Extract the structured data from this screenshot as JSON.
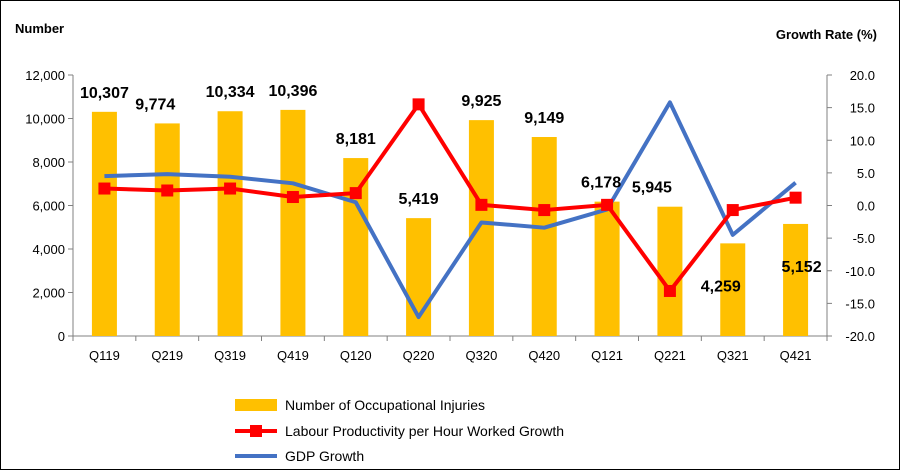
{
  "chart_data": {
    "type": "bar",
    "categories": [
      "Q119",
      "Q219",
      "Q319",
      "Q419",
      "Q120",
      "Q220",
      "Q320",
      "Q420",
      "Q121",
      "Q221",
      "Q321",
      "Q421"
    ],
    "left_axis": {
      "title": "Number",
      "ylim": [
        0,
        12000
      ],
      "ticks": [
        "0",
        "2,000",
        "4,000",
        "6,000",
        "8,000",
        "10,000",
        "12,000"
      ],
      "tick_values": [
        0,
        2000,
        4000,
        6000,
        8000,
        10000,
        12000
      ]
    },
    "right_axis": {
      "title": "Growth Rate (%)",
      "ylim": [
        -20,
        20
      ],
      "ticks": [
        "-20.0",
        "-15.0",
        "-10.0",
        "-5.0",
        "0.0",
        "5.0",
        "10.0",
        "15.0",
        "20.0"
      ],
      "tick_values": [
        -20,
        -15,
        -10,
        -5,
        0,
        5,
        10,
        15,
        20
      ]
    },
    "series": [
      {
        "name": "Number of Occupational Injuries",
        "type": "bar",
        "axis": "left",
        "color": "#FFC000",
        "values": [
          10307,
          9774,
          10334,
          10396,
          8181,
          5419,
          9925,
          9149,
          6178,
          5945,
          4259,
          5152
        ],
        "labels": [
          "10,307",
          "9,774",
          "10,334",
          "10,396",
          "8,181",
          "5,419",
          "9,925",
          "9,149",
          "6,178",
          "5,945",
          "4,259",
          "5,152"
        ]
      },
      {
        "name": "Labour Productivity per Hour Worked Growth",
        "type": "line",
        "axis": "right",
        "color": "#FF0000",
        "marker": "square",
        "values": [
          2.6,
          2.3,
          2.6,
          1.3,
          1.9,
          15.5,
          0.1,
          -0.7,
          0.1,
          -13.1,
          -0.7,
          1.2
        ]
      },
      {
        "name": "GDP Growth",
        "type": "line",
        "axis": "right",
        "color": "#4472C4",
        "values": [
          4.5,
          4.8,
          4.4,
          3.4,
          0.5,
          -17.1,
          -2.6,
          -3.4,
          -0.6,
          15.8,
          -4.5,
          3.5
        ]
      }
    ],
    "legend_position": "bottom-center",
    "grid": false
  }
}
